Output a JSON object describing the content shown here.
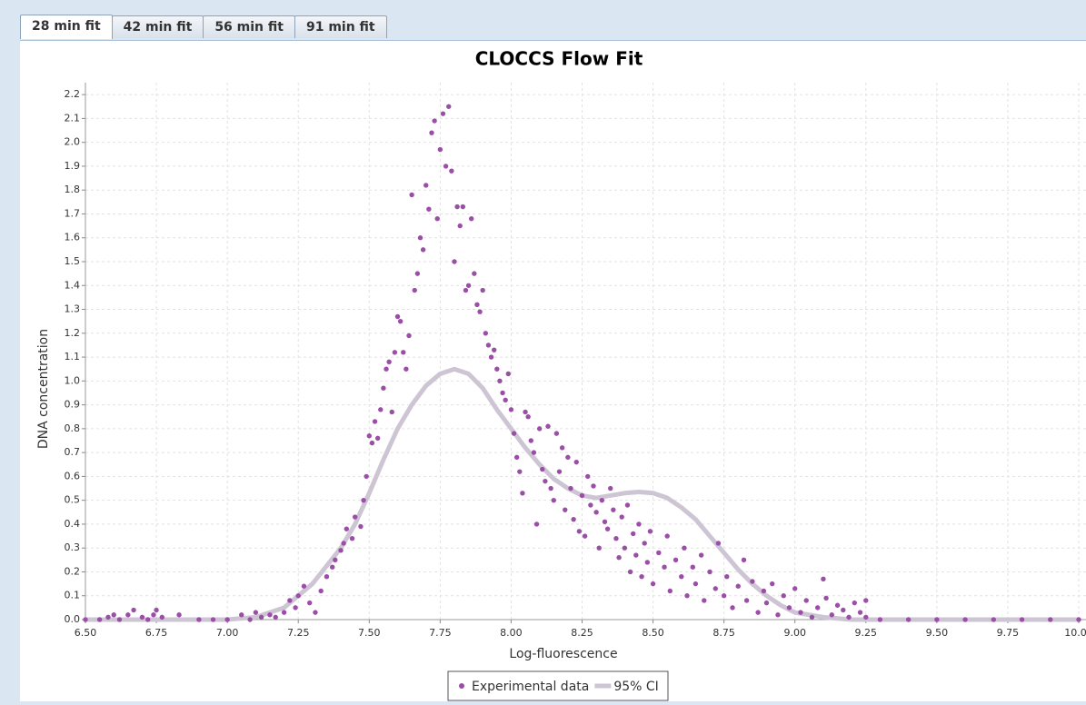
{
  "tabs": [
    "28 min fit",
    "42 min fit",
    "56 min fit",
    "91 min fit"
  ],
  "chart_data": {
    "type": "scatter",
    "title": "CLOCCS Flow Fit",
    "xlabel": "Log-fluorescence",
    "ylabel": "DNA concentration",
    "xlim": [
      6.5,
      10.0
    ],
    "ylim": [
      0,
      2.25
    ],
    "grid": true,
    "legend": "bottom",
    "xticks": [
      {
        "value": 6.5,
        "label": "6.50"
      },
      {
        "value": 6.75,
        "label": "6.75"
      },
      {
        "value": 7.0,
        "label": "7.00"
      },
      {
        "value": 7.25,
        "label": "7.25"
      },
      {
        "value": 7.5,
        "label": "7.50"
      },
      {
        "value": 7.75,
        "label": "7.75"
      },
      {
        "value": 8.0,
        "label": "8.00"
      },
      {
        "value": 8.25,
        "label": "8.25"
      },
      {
        "value": 8.5,
        "label": "8.50"
      },
      {
        "value": 8.75,
        "label": "8.75"
      },
      {
        "value": 9.0,
        "label": "9.00"
      },
      {
        "value": 9.25,
        "label": "9.25"
      },
      {
        "value": 9.5,
        "label": "9.50"
      },
      {
        "value": 9.75,
        "label": "9.75"
      },
      {
        "value": 10.0,
        "label": "10.00"
      }
    ],
    "yticks": [
      {
        "value": 0,
        "label": "0.0"
      },
      0.1,
      0.2,
      0.3,
      0.4,
      0.5,
      0.6,
      0.7,
      0.8,
      0.9,
      {
        "value": 1,
        "label": "1.0"
      },
      1.1,
      1.2,
      1.3,
      1.4,
      1.5,
      1.6,
      1.7,
      1.8,
      1.9,
      {
        "value": 2,
        "label": "2.0"
      },
      2.1,
      2.2
    ],
    "series": [
      {
        "name": "Experimental data",
        "type": "scatter",
        "color": "#9b4ea6",
        "x": [
          6.5,
          6.55,
          6.58,
          6.6,
          6.62,
          6.65,
          6.67,
          6.7,
          6.72,
          6.74,
          6.75,
          6.77,
          6.83,
          6.9,
          6.95,
          7.0,
          7.05,
          7.08,
          7.1,
          7.12,
          7.15,
          7.17,
          7.2,
          7.22,
          7.24,
          7.25,
          7.27,
          7.29,
          7.31,
          7.33,
          7.35,
          7.37,
          7.38,
          7.4,
          7.41,
          7.42,
          7.44,
          7.45,
          7.47,
          7.48,
          7.49,
          7.5,
          7.51,
          7.52,
          7.53,
          7.54,
          7.55,
          7.56,
          7.57,
          7.58,
          7.59,
          7.6,
          7.61,
          7.62,
          7.63,
          7.64,
          7.65,
          7.66,
          7.67,
          7.68,
          7.69,
          7.7,
          7.71,
          7.72,
          7.73,
          7.74,
          7.75,
          7.76,
          7.77,
          7.78,
          7.79,
          7.8,
          7.81,
          7.82,
          7.83,
          7.84,
          7.85,
          7.86,
          7.87,
          7.88,
          7.89,
          7.9,
          7.91,
          7.92,
          7.93,
          7.94,
          7.95,
          7.96,
          7.97,
          7.98,
          7.99,
          8.0,
          8.01,
          8.02,
          8.03,
          8.04,
          8.05,
          8.06,
          8.07,
          8.08,
          8.09,
          8.1,
          8.11,
          8.12,
          8.13,
          8.14,
          8.15,
          8.16,
          8.17,
          8.18,
          8.19,
          8.2,
          8.21,
          8.22,
          8.23,
          8.24,
          8.25,
          8.26,
          8.27,
          8.28,
          8.29,
          8.3,
          8.31,
          8.32,
          8.33,
          8.34,
          8.35,
          8.36,
          8.37,
          8.38,
          8.39,
          8.4,
          8.41,
          8.42,
          8.43,
          8.44,
          8.45,
          8.46,
          8.47,
          8.48,
          8.49,
          8.5,
          8.52,
          8.54,
          8.55,
          8.56,
          8.58,
          8.6,
          8.61,
          8.62,
          8.64,
          8.65,
          8.67,
          8.68,
          8.7,
          8.72,
          8.73,
          8.75,
          8.76,
          8.78,
          8.8,
          8.82,
          8.83,
          8.85,
          8.87,
          8.89,
          8.9,
          8.92,
          8.94,
          8.96,
          8.98,
          9.0,
          9.02,
          9.04,
          9.06,
          9.08,
          9.1,
          9.11,
          9.13,
          9.15,
          9.17,
          9.19,
          9.21,
          9.23,
          9.25,
          9.25,
          9.3,
          9.4,
          9.5,
          9.6,
          9.7,
          9.8,
          9.9,
          10.0
        ],
        "values": [
          0,
          0,
          0.01,
          0.02,
          0,
          0.02,
          0.04,
          0.01,
          0,
          0.02,
          0.04,
          0.01,
          0.02,
          0,
          0,
          0,
          0.02,
          0,
          0.03,
          0.01,
          0.02,
          0.01,
          0.03,
          0.08,
          0.05,
          0.1,
          0.14,
          0.07,
          0.03,
          0.12,
          0.18,
          0.22,
          0.25,
          0.29,
          0.32,
          0.38,
          0.34,
          0.43,
          0.39,
          0.5,
          0.6,
          0.77,
          0.74,
          0.83,
          0.76,
          0.88,
          0.97,
          1.05,
          1.08,
          0.87,
          1.12,
          1.27,
          1.25,
          1.12,
          1.05,
          1.19,
          1.78,
          1.38,
          1.45,
          1.6,
          1.55,
          1.82,
          1.72,
          2.04,
          2.09,
          1.68,
          1.97,
          2.12,
          1.9,
          2.15,
          1.88,
          1.5,
          1.73,
          1.65,
          1.73,
          1.38,
          1.4,
          1.68,
          1.45,
          1.32,
          1.29,
          1.38,
          1.2,
          1.15,
          1.1,
          1.13,
          1.05,
          1,
          0.95,
          0.92,
          1.03,
          0.88,
          0.78,
          0.68,
          0.62,
          0.53,
          0.87,
          0.85,
          0.75,
          0.7,
          0.4,
          0.8,
          0.63,
          0.58,
          0.81,
          0.55,
          0.5,
          0.78,
          0.62,
          0.72,
          0.46,
          0.68,
          0.55,
          0.42,
          0.66,
          0.37,
          0.52,
          0.35,
          0.6,
          0.48,
          0.56,
          0.45,
          0.3,
          0.5,
          0.41,
          0.38,
          0.55,
          0.46,
          0.34,
          0.26,
          0.43,
          0.3,
          0.48,
          0.2,
          0.36,
          0.27,
          0.4,
          0.18,
          0.32,
          0.24,
          0.37,
          0.15,
          0.28,
          0.22,
          0.35,
          0.12,
          0.25,
          0.18,
          0.3,
          0.1,
          0.22,
          0.15,
          0.27,
          0.08,
          0.2,
          0.13,
          0.32,
          0.1,
          0.18,
          0.05,
          0.14,
          0.25,
          0.08,
          0.16,
          0.03,
          0.12,
          0.07,
          0.15,
          0.02,
          0.1,
          0.05,
          0.13,
          0.03,
          0.08,
          0.01,
          0.05,
          0.17,
          0.09,
          0.02,
          0.06,
          0.04,
          0.01,
          0.07,
          0.03,
          0.08,
          0.01,
          0,
          0,
          0,
          0,
          0,
          0,
          0,
          0
        ]
      },
      {
        "name": "95% CI",
        "type": "line",
        "color": "#cdc5d4",
        "x": [
          6.5,
          7.0,
          7.1,
          7.2,
          7.3,
          7.4,
          7.45,
          7.5,
          7.55,
          7.6,
          7.65,
          7.7,
          7.75,
          7.8,
          7.85,
          7.9,
          7.95,
          8.0,
          8.05,
          8.1,
          8.15,
          8.2,
          8.25,
          8.3,
          8.35,
          8.4,
          8.45,
          8.5,
          8.55,
          8.6,
          8.65,
          8.7,
          8.75,
          8.8,
          8.85,
          8.9,
          8.95,
          9.0,
          9.1,
          9.2,
          10.0
        ],
        "values": [
          0,
          0,
          0.01,
          0.05,
          0.15,
          0.3,
          0.4,
          0.53,
          0.67,
          0.8,
          0.9,
          0.98,
          1.03,
          1.05,
          1.03,
          0.97,
          0.88,
          0.8,
          0.72,
          0.65,
          0.59,
          0.55,
          0.52,
          0.51,
          0.52,
          0.53,
          0.535,
          0.53,
          0.51,
          0.47,
          0.42,
          0.35,
          0.28,
          0.21,
          0.15,
          0.1,
          0.06,
          0.03,
          0.01,
          0,
          0
        ]
      }
    ]
  }
}
